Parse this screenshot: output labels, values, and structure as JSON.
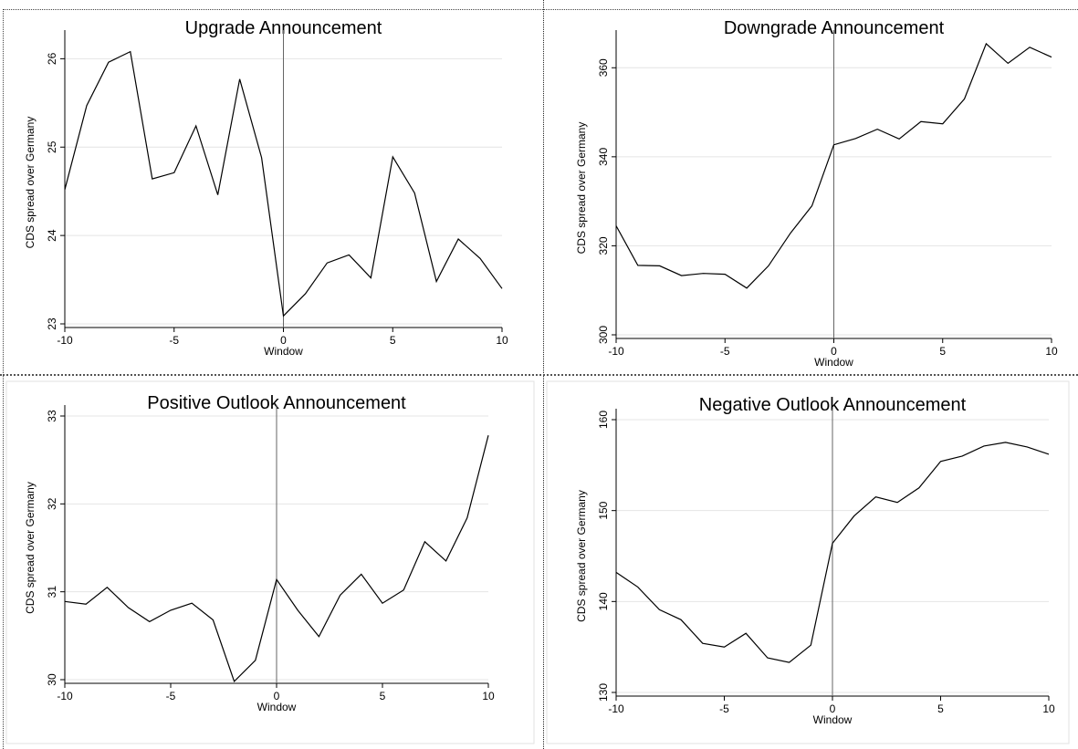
{
  "chart_data": [
    {
      "type": "line",
      "title": "Upgrade Announcement",
      "xlabel": "Window",
      "ylabel": "CDS spread over Germany",
      "x": [
        -10,
        -9,
        -8,
        -7,
        -6,
        -5,
        -4,
        -3,
        -2,
        -1,
        0,
        1,
        2,
        3,
        4,
        5,
        6,
        7,
        8,
        9,
        10
      ],
      "series": [
        {
          "values": [
            24.52,
            25.47,
            25.96,
            26.08,
            24.64,
            24.71,
            25.24,
            24.46,
            25.77,
            24.88,
            23.09,
            23.34,
            23.69,
            23.78,
            23.52,
            24.89,
            24.48,
            23.48,
            23.96,
            23.74,
            23.4
          ]
        }
      ],
      "xticks": [
        -10,
        -5,
        0,
        5,
        10
      ],
      "yticks": [
        23,
        24,
        25,
        26
      ],
      "xlim": [
        -10,
        10
      ],
      "ylim": [
        23,
        26.2
      ],
      "vline": 0,
      "grid": true
    },
    {
      "type": "line",
      "title": "Downgrade Announcement",
      "xlabel": "Window",
      "ylabel": "CDS spread over Germany",
      "x": [
        -10,
        -9,
        -8,
        -7,
        -6,
        -5,
        -4,
        -3,
        -2,
        -1,
        0,
        1,
        2,
        3,
        4,
        5,
        6,
        7,
        8,
        9,
        10
      ],
      "series": [
        {
          "values": [
            324.5,
            315.6,
            315.5,
            313.3,
            313.8,
            313.6,
            310.5,
            315.5,
            322.8,
            329.0,
            342.7,
            344.1,
            346.2,
            344.0,
            347.9,
            347.4,
            353.0,
            365.4,
            361.0,
            364.6,
            362.4
          ]
        }
      ],
      "xticks": [
        -10,
        -5,
        0,
        5,
        10
      ],
      "yticks": [
        300,
        320,
        340,
        360
      ],
      "xlim": [
        -10,
        10
      ],
      "ylim": [
        300,
        366
      ],
      "vline": 0,
      "grid": true
    },
    {
      "type": "line",
      "title": "Positive Outlook Announcement",
      "xlabel": "Window",
      "ylabel": "CDS spread over Germany",
      "x": [
        -10,
        -9,
        -8,
        -7,
        -6,
        -5,
        -4,
        -3,
        -2,
        -1,
        0,
        1,
        2,
        3,
        4,
        5,
        6,
        7,
        8,
        9,
        10
      ],
      "series": [
        {
          "values": [
            30.89,
            30.86,
            31.05,
            30.82,
            30.66,
            30.79,
            30.87,
            30.68,
            29.98,
            30.22,
            31.14,
            30.79,
            30.49,
            30.96,
            31.2,
            30.87,
            31.02,
            31.57,
            31.35,
            31.84,
            32.78
          ]
        }
      ],
      "xticks": [
        -10,
        -5,
        0,
        5,
        10
      ],
      "yticks": [
        30,
        31,
        32,
        33
      ],
      "xlim": [
        -10,
        10
      ],
      "ylim": [
        30,
        33
      ],
      "vline": 0,
      "grid": true
    },
    {
      "type": "line",
      "title": "Negative Outlook Announcement",
      "xlabel": "Window",
      "ylabel": "CDS spread over Germany",
      "x": [
        -10,
        -9,
        -8,
        -7,
        -6,
        -5,
        -4,
        -3,
        -2,
        -1,
        0,
        1,
        2,
        3,
        4,
        5,
        6,
        7,
        8,
        9,
        10
      ],
      "series": [
        {
          "values": [
            143.2,
            141.6,
            139.1,
            138.0,
            135.4,
            135.0,
            136.5,
            133.8,
            133.3,
            135.2,
            146.4,
            149.4,
            151.5,
            150.9,
            152.5,
            155.4,
            156.0,
            157.1,
            157.5,
            157.0,
            156.2
          ]
        }
      ],
      "xticks": [
        -10,
        -5,
        0,
        5,
        10
      ],
      "yticks": [
        130,
        140,
        150,
        160
      ],
      "xlim": [
        -10,
        10
      ],
      "ylim": [
        130,
        160
      ],
      "vline": 0,
      "grid": true
    }
  ]
}
